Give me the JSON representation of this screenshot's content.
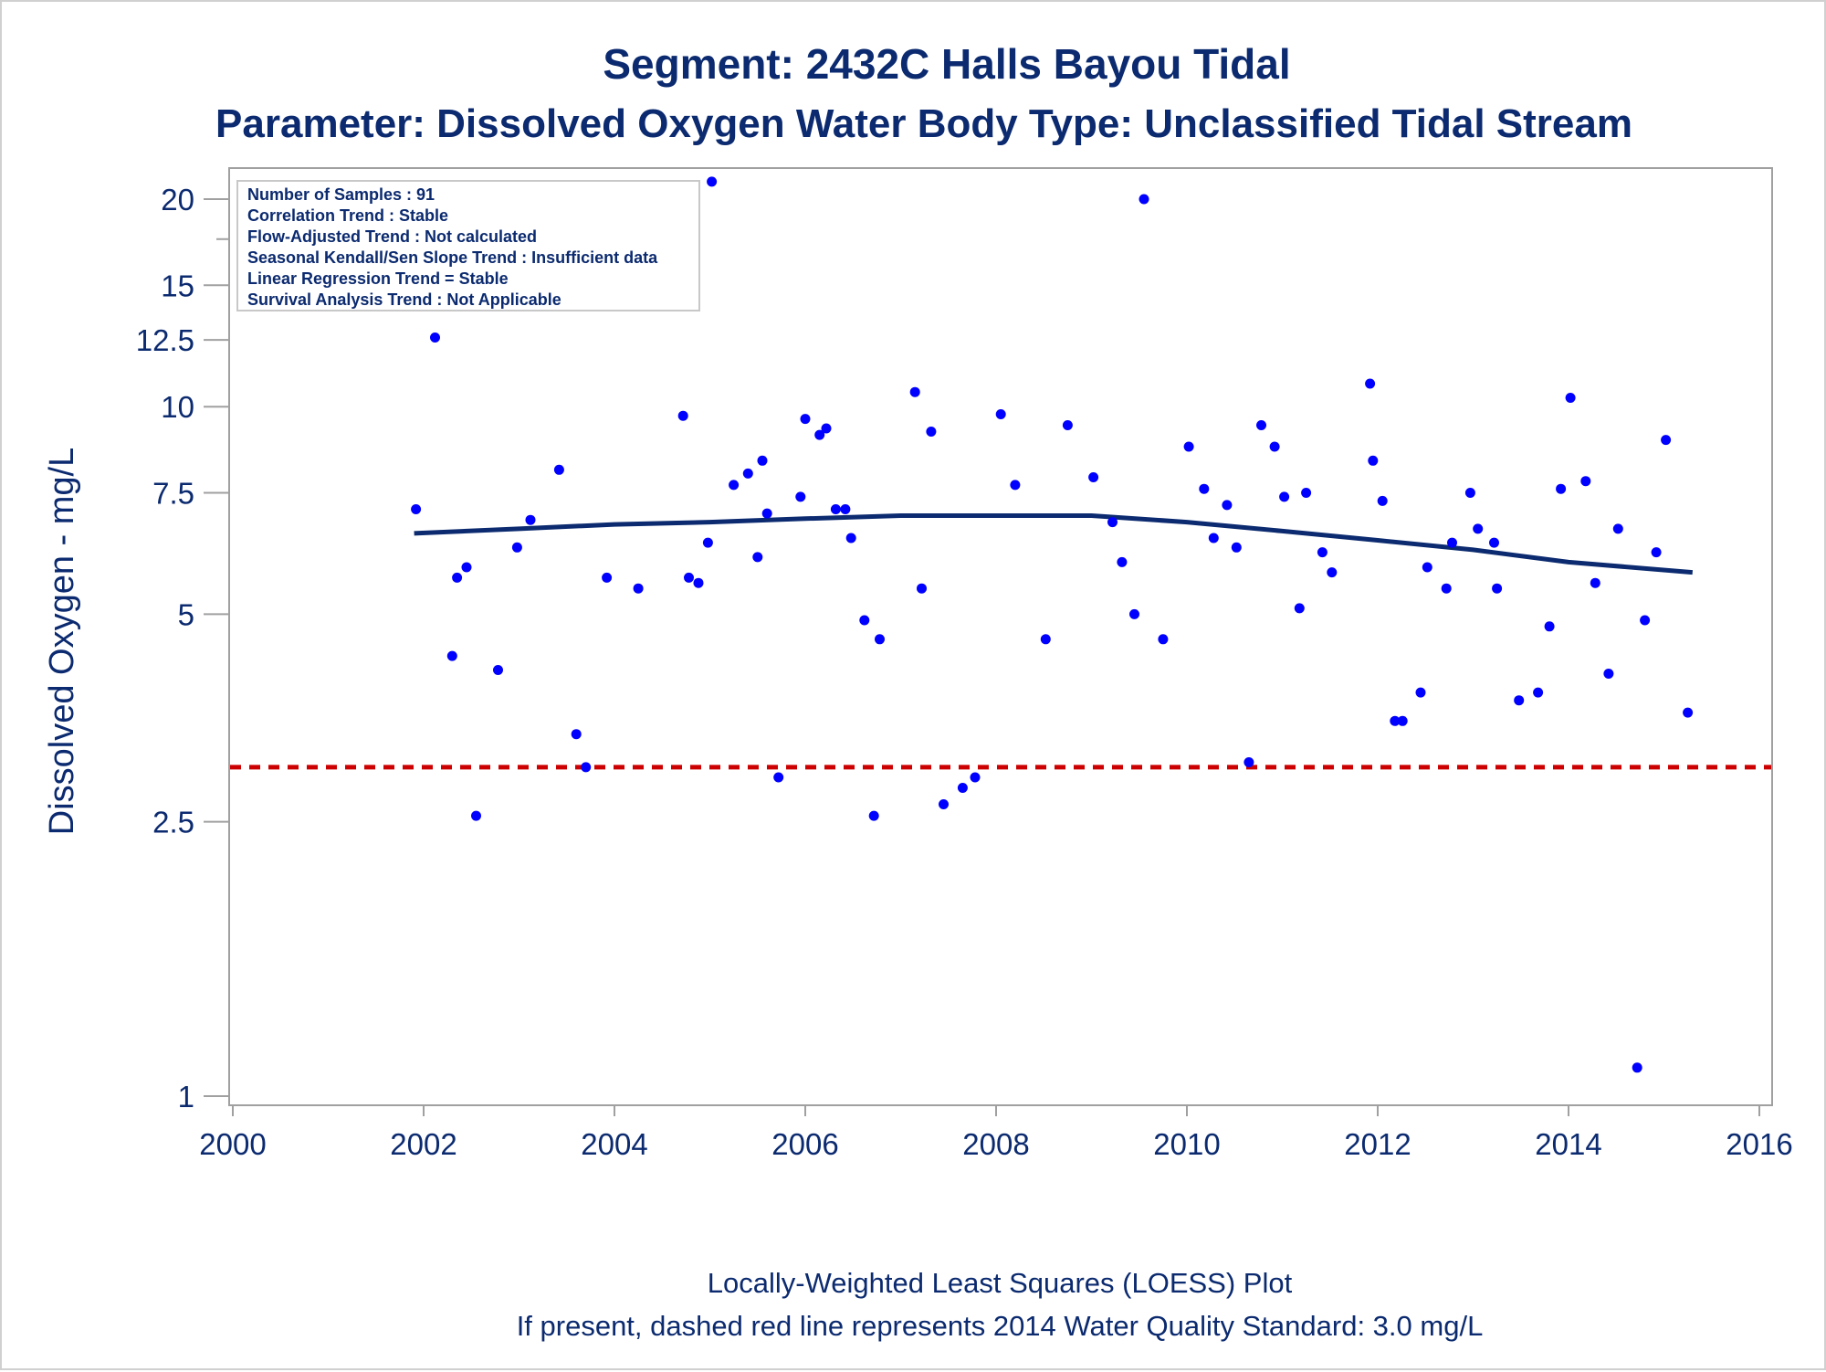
{
  "chart_data": {
    "type": "scatter",
    "title": "Segment: 2432C  Halls Bayou Tidal",
    "subtitle": "Parameter: Dissolved Oxygen   Water Body Type: Unclassified Tidal Stream",
    "ylabel": "Dissolved Oxygen - mg/L",
    "xlabel": "",
    "footnotes": [
      "Locally-Weighted Least Squares (LOESS) Plot",
      "If present, dashed red line represents 2014 Water Quality Standard: 3.0 mg/L"
    ],
    "inset_lines": [
      "Number of Samples : 91",
      "Correlation Trend : Stable",
      "Flow-Adjusted Trend : Not calculated",
      "Seasonal Kendall/Sen Slope Trend : Insufficient data",
      "Linear Regression Trend = Stable",
      "Survival Analysis Trend : Not Applicable"
    ],
    "y_scale": "log",
    "xlim": [
      2000,
      2016
    ],
    "ylim": [
      1,
      21
    ],
    "x_ticks": [
      "2000",
      "2002",
      "2004",
      "2006",
      "2008",
      "2010",
      "2012",
      "2014",
      "2016"
    ],
    "y_ticks": [
      "1",
      "2.5",
      "5",
      "7.5",
      "10",
      "12.5",
      "15",
      "20"
    ],
    "grid": false,
    "legend": "none",
    "standard_line": {
      "value": 3.0,
      "style": "dashed",
      "color": "#cc0000"
    },
    "colors": {
      "points": "#0000ff",
      "loess": "#0b2a6f",
      "text": "#0b2a6f",
      "frame": "#a0a0a0"
    },
    "loess": {
      "x": [
        2001.9,
        2003,
        2004,
        2005,
        2006,
        2007,
        2008,
        2009,
        2010,
        2011,
        2012,
        2013,
        2014,
        2015.3
      ],
      "y": [
        6.55,
        6.65,
        6.75,
        6.8,
        6.88,
        6.95,
        6.95,
        6.95,
        6.8,
        6.6,
        6.4,
        6.2,
        5.95,
        5.75
      ]
    },
    "points": [
      [
        2001.92,
        7.1
      ],
      [
        2002.12,
        12.6
      ],
      [
        2002.3,
        4.35
      ],
      [
        2002.35,
        5.65
      ],
      [
        2002.45,
        5.85
      ],
      [
        2002.55,
        2.55
      ],
      [
        2002.78,
        4.15
      ],
      [
        2002.98,
        6.25
      ],
      [
        2003.12,
        6.85
      ],
      [
        2003.42,
        8.1
      ],
      [
        2003.6,
        3.35
      ],
      [
        2003.7,
        3.0
      ],
      [
        2003.92,
        5.65
      ],
      [
        2004.25,
        5.45
      ],
      [
        2004.72,
        9.7
      ],
      [
        2004.78,
        5.65
      ],
      [
        2004.88,
        5.55
      ],
      [
        2004.98,
        6.35
      ],
      [
        2005.02,
        21.2
      ],
      [
        2005.25,
        7.7
      ],
      [
        2005.4,
        8.0
      ],
      [
        2005.5,
        6.05
      ],
      [
        2005.55,
        8.35
      ],
      [
        2005.6,
        7.0
      ],
      [
        2005.72,
        2.9
      ],
      [
        2005.95,
        7.4
      ],
      [
        2006.0,
        9.6
      ],
      [
        2006.15,
        9.1
      ],
      [
        2006.22,
        9.3
      ],
      [
        2006.32,
        7.1
      ],
      [
        2006.42,
        7.1
      ],
      [
        2006.48,
        6.45
      ],
      [
        2006.62,
        4.9
      ],
      [
        2006.72,
        2.55
      ],
      [
        2006.78,
        4.6
      ],
      [
        2007.15,
        10.5
      ],
      [
        2007.22,
        5.45
      ],
      [
        2007.32,
        9.2
      ],
      [
        2007.45,
        2.65
      ],
      [
        2007.65,
        2.8
      ],
      [
        2007.78,
        2.9
      ],
      [
        2008.05,
        9.75
      ],
      [
        2008.2,
        7.7
      ],
      [
        2008.52,
        4.6
      ],
      [
        2008.75,
        9.4
      ],
      [
        2009.02,
        7.9
      ],
      [
        2009.22,
        6.8
      ],
      [
        2009.32,
        5.95
      ],
      [
        2009.45,
        5.0
      ],
      [
        2009.55,
        20.0
      ],
      [
        2009.75,
        4.6
      ],
      [
        2010.02,
        8.75
      ],
      [
        2010.18,
        7.6
      ],
      [
        2010.28,
        6.45
      ],
      [
        2010.42,
        7.2
      ],
      [
        2010.52,
        6.25
      ],
      [
        2010.65,
        3.05
      ],
      [
        2010.78,
        9.4
      ],
      [
        2010.92,
        8.75
      ],
      [
        2011.02,
        7.4
      ],
      [
        2011.18,
        5.1
      ],
      [
        2011.25,
        7.5
      ],
      [
        2011.42,
        6.15
      ],
      [
        2011.52,
        5.75
      ],
      [
        2011.92,
        10.8
      ],
      [
        2011.95,
        8.35
      ],
      [
        2012.05,
        7.3
      ],
      [
        2012.18,
        3.5
      ],
      [
        2012.26,
        3.5
      ],
      [
        2012.45,
        3.85
      ],
      [
        2012.52,
        5.85
      ],
      [
        2012.72,
        5.45
      ],
      [
        2012.78,
        6.35
      ],
      [
        2012.97,
        7.5
      ],
      [
        2013.05,
        6.65
      ],
      [
        2013.22,
        6.35
      ],
      [
        2013.25,
        5.45
      ],
      [
        2013.48,
        3.75
      ],
      [
        2013.68,
        3.85
      ],
      [
        2013.8,
        4.8
      ],
      [
        2013.92,
        7.6
      ],
      [
        2014.02,
        10.3
      ],
      [
        2014.18,
        7.8
      ],
      [
        2014.28,
        5.55
      ],
      [
        2014.42,
        4.1
      ],
      [
        2014.52,
        6.65
      ],
      [
        2014.72,
        1.1
      ],
      [
        2014.8,
        4.9
      ],
      [
        2014.92,
        6.15
      ],
      [
        2015.02,
        8.95
      ],
      [
        2015.25,
        3.6
      ]
    ]
  }
}
